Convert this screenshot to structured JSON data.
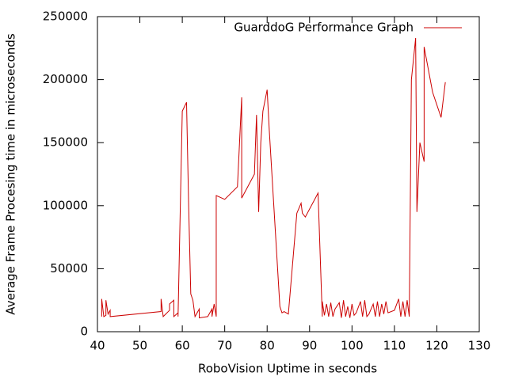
{
  "chart_data": {
    "type": "line",
    "xlabel": "RoboVision Uptime in seconds",
    "ylabel": "Average Frame Procesing time in microseconds",
    "xlim": [
      40,
      130
    ],
    "xticks": [
      40,
      50,
      60,
      70,
      80,
      90,
      100,
      110,
      120,
      130
    ],
    "ylim": [
      0,
      250000
    ],
    "yticks": [
      0,
      50000,
      100000,
      150000,
      200000,
      250000
    ],
    "legend": "top-right",
    "grid": false,
    "series": [
      {
        "name": "GuarddoG Performance Graph",
        "color": "#cc0000",
        "x": [
          41,
          41,
          41.5,
          42,
          42,
          42.5,
          43,
          43,
          55,
          55,
          55.5,
          57,
          57,
          58,
          58,
          59,
          59,
          60,
          61,
          61.5,
          62,
          62.5,
          63,
          64,
          64,
          66,
          67,
          67,
          67.5,
          68,
          68,
          70,
          73,
          74,
          74,
          77,
          77.5,
          78,
          78.5,
          79,
          80,
          80.5,
          83,
          83.5,
          84,
          85,
          87,
          88,
          88.3,
          89,
          92,
          93,
          93,
          93.5,
          94,
          94.5,
          95,
          95.5,
          96,
          97,
          97.5,
          98,
          98.5,
          99,
          99.5,
          100,
          100.5,
          101,
          102,
          102.5,
          103,
          103.5,
          104,
          105,
          105.5,
          106,
          106.5,
          107,
          107.5,
          108,
          108.5,
          110,
          111,
          111.5,
          112,
          112.5,
          113,
          113.5,
          114,
          115,
          115.3,
          116,
          117,
          117,
          119,
          121,
          122
        ],
        "values": [
          12000,
          26000,
          12000,
          13000,
          25000,
          14000,
          17000,
          12000,
          16000,
          26000,
          12000,
          17000,
          22000,
          25000,
          12000,
          15000,
          12000,
          175000,
          182000,
          100000,
          30000,
          25000,
          12000,
          18000,
          11000,
          12000,
          18000,
          12000,
          22000,
          12000,
          108000,
          105000,
          115000,
          186000,
          106000,
          125000,
          172000,
          95000,
          150000,
          175000,
          192000,
          160000,
          20000,
          15000,
          16000,
          14000,
          94000,
          102000,
          94000,
          91000,
          110000,
          12000,
          24000,
          13000,
          22000,
          12000,
          23000,
          12000,
          18000,
          23000,
          11000,
          25000,
          12000,
          20000,
          11000,
          22000,
          13000,
          15000,
          24000,
          12000,
          25000,
          12000,
          14000,
          22000,
          12000,
          24000,
          12000,
          22000,
          14000,
          24000,
          15000,
          17000,
          26000,
          12000,
          24000,
          12000,
          25000,
          12000,
          200000,
          233000,
          95000,
          150000,
          135000,
          226000,
          190000,
          170000,
          198000
        ]
      }
    ]
  }
}
